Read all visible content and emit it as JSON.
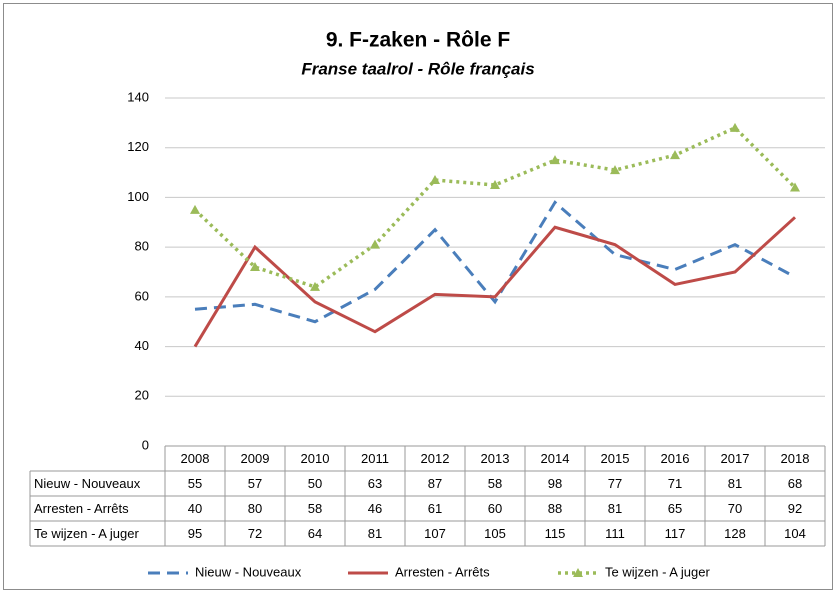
{
  "chart_data": {
    "type": "line",
    "title": "9. F-zaken - Rôle F",
    "subtitle": "Franse taalrol - Rôle français",
    "categories": [
      "2008",
      "2009",
      "2010",
      "2011",
      "2012",
      "2013",
      "2014",
      "2015",
      "2016",
      "2017",
      "2018"
    ],
    "series": [
      {
        "name": "Nieuw - Nouveaux",
        "color": "#4a7ebb",
        "style": "dashed",
        "values": [
          55,
          57,
          50,
          63,
          87,
          58,
          98,
          77,
          71,
          81,
          68
        ]
      },
      {
        "name": "Arresten - Arrêts",
        "color": "#be4b48",
        "style": "solid",
        "values": [
          40,
          80,
          58,
          46,
          61,
          60,
          88,
          81,
          65,
          70,
          92
        ]
      },
      {
        "name": "Te wijzen - A juger",
        "color": "#9bbb59",
        "style": "dotted",
        "marker": "triangle",
        "values": [
          95,
          72,
          64,
          81,
          107,
          105,
          115,
          111,
          117,
          128,
          104
        ]
      }
    ],
    "ylim": [
      0,
      140
    ],
    "yticks": [
      0,
      20,
      40,
      60,
      80,
      100,
      120,
      140
    ],
    "grid": true,
    "legend": "bottom"
  }
}
